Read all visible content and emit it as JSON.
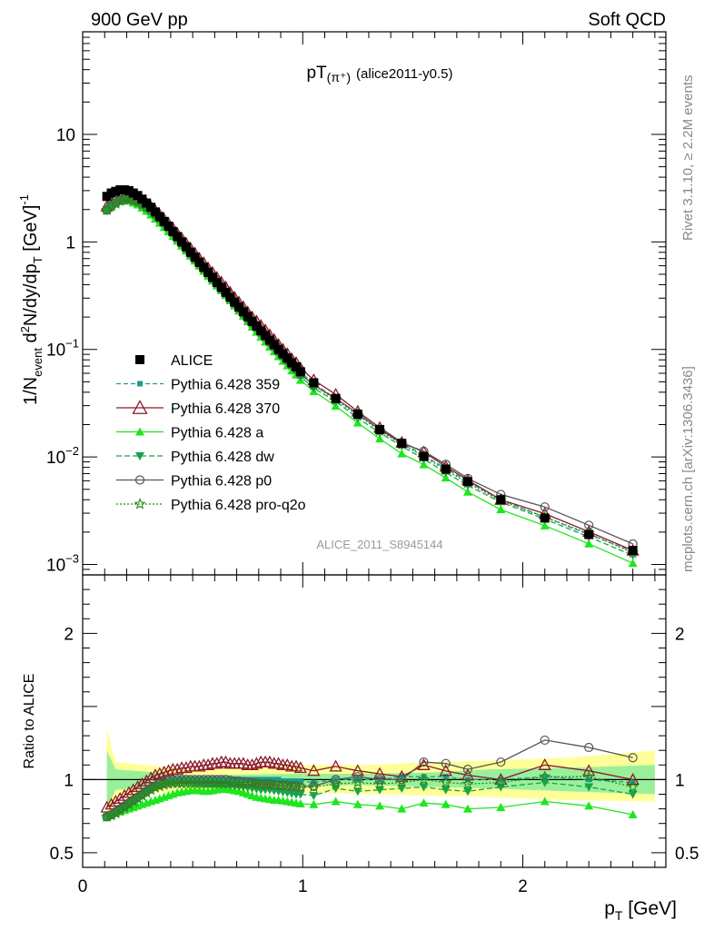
{
  "header": {
    "left": "900 GeV pp",
    "right": "Soft QCD"
  },
  "side_labels": {
    "rivet": "Rivet 3.1.10, ≥ 2.2M events",
    "mcplots": "mcplots.cern.ch [arXiv:1306.3436]"
  },
  "colors": {
    "alice": "#000000",
    "p359": "#1a9e8f",
    "p370": "#8b1a2b",
    "pa": "#1ee61e",
    "pdw": "#17a34a",
    "pp0": "#555555",
    "pq2o": "#2a8a1a",
    "band_inner": "#9af09a",
    "band_outer": "#ffff99"
  },
  "chart_data": [
    {
      "type": "line",
      "panel": "main",
      "title": "pT(π⁺) (alice2011-y0.5)",
      "title_main": "pT",
      "title_sup": "(π⁺)",
      "title_rest": "(alice2011-y0.5)",
      "ylabel": "1/N_event d²N/dy/dp_T [GeV]⁻¹",
      "ylabel_pre": "1/N",
      "ylabel_sub1": "event",
      "ylabel_mid": " d",
      "ylabel_sup1": "2",
      "ylabel_mid2": "N/dy/dp",
      "ylabel_sub2": "T",
      "ylabel_post": " [GeV]",
      "ylabel_sup2": "-1",
      "yscale": "log",
      "ylim": [
        0.0008,
        90
      ],
      "xlim": [
        0,
        2.65
      ],
      "watermark": "ALICE_2011_S8945144",
      "y_ticks": [
        {
          "v": 10,
          "label": "10",
          "exp": ""
        },
        {
          "v": 1,
          "label": "1",
          "exp": ""
        },
        {
          "v": 0.1,
          "label": "10",
          "exp": "−1"
        },
        {
          "v": 0.01,
          "label": "10",
          "exp": "−2"
        },
        {
          "v": 0.001,
          "label": "10",
          "exp": "−3"
        }
      ],
      "x": [
        0.11,
        0.13,
        0.15,
        0.17,
        0.19,
        0.21,
        0.23,
        0.25,
        0.27,
        0.29,
        0.31,
        0.33,
        0.35,
        0.37,
        0.39,
        0.41,
        0.43,
        0.45,
        0.47,
        0.49,
        0.51,
        0.53,
        0.55,
        0.57,
        0.59,
        0.61,
        0.63,
        0.65,
        0.67,
        0.69,
        0.71,
        0.73,
        0.75,
        0.77,
        0.79,
        0.81,
        0.83,
        0.85,
        0.87,
        0.89,
        0.91,
        0.93,
        0.95,
        0.97,
        0.99,
        1.05,
        1.15,
        1.25,
        1.35,
        1.45,
        1.55,
        1.65,
        1.75,
        1.9,
        2.1,
        2.3,
        2.5
      ],
      "legend": [
        {
          "key": "alice",
          "label": "ALICE"
        },
        {
          "key": "p359",
          "label": "Pythia 6.428 359"
        },
        {
          "key": "p370",
          "label": "Pythia 6.428 370"
        },
        {
          "key": "pa",
          "label": "Pythia 6.428 a"
        },
        {
          "key": "pdw",
          "label": "Pythia 6.428 dw"
        },
        {
          "key": "pp0",
          "label": "Pythia 6.428 p0"
        },
        {
          "key": "pq2o",
          "label": "Pythia 6.428 pro-q2o"
        }
      ],
      "series": [
        {
          "key": "alice",
          "name": "ALICE",
          "values": [
            2.65,
            2.85,
            2.95,
            3.05,
            3.05,
            3.0,
            2.85,
            2.7,
            2.5,
            2.3,
            2.1,
            1.9,
            1.72,
            1.55,
            1.4,
            1.25,
            1.12,
            1.0,
            0.9,
            0.8,
            0.72,
            0.645,
            0.58,
            0.52,
            0.468,
            0.42,
            0.378,
            0.34,
            0.306,
            0.275,
            0.248,
            0.224,
            0.202,
            0.182,
            0.165,
            0.149,
            0.135,
            0.122,
            0.111,
            0.1,
            0.091,
            0.083,
            0.075,
            0.069,
            0.062,
            0.049,
            0.035,
            0.025,
            0.018,
            0.0134,
            0.0101,
            0.0077,
            0.0059,
            0.004,
            0.0027,
            0.0019,
            0.00135
          ]
        },
        {
          "key": "p359",
          "name": "Pythia 6.428 359"
        },
        {
          "key": "p370",
          "name": "Pythia 6.428 370"
        },
        {
          "key": "pa",
          "name": "Pythia 6.428 a"
        },
        {
          "key": "pdw",
          "name": "Pythia 6.428 dw"
        },
        {
          "key": "pp0",
          "name": "Pythia 6.428 p0"
        },
        {
          "key": "pq2o",
          "name": "Pythia 6.428 pro-q2o"
        }
      ]
    },
    {
      "type": "line",
      "panel": "ratio",
      "ylabel": "Ratio to ALICE",
      "xlabel": "p_T [GeV]",
      "xlabel_main": "p",
      "xlabel_sub": "T",
      "xlabel_rest": " [GeV]",
      "ylim": [
        0.4,
        2.4
      ],
      "xlim": [
        0,
        2.65
      ],
      "y_ticks": [
        {
          "v": 2,
          "label": "2"
        },
        {
          "v": 1,
          "label": "1"
        },
        {
          "v": 0.5,
          "label": "0.5"
        }
      ],
      "x_ticks": [
        {
          "v": 0,
          "label": "0"
        },
        {
          "v": 1,
          "label": "1"
        },
        {
          "v": 2,
          "label": "2"
        }
      ],
      "band_inner": [
        [
          0.11,
          0.8,
          1.2
        ],
        [
          0.15,
          0.93,
          1.07
        ],
        [
          0.5,
          0.97,
          1.03
        ],
        [
          1.0,
          0.96,
          1.04
        ],
        [
          1.3,
          0.96,
          1.04
        ],
        [
          1.6,
          0.95,
          1.05
        ],
        [
          1.85,
          0.94,
          1.07
        ],
        [
          2.2,
          0.92,
          1.08
        ],
        [
          2.6,
          0.9,
          1.1
        ]
      ],
      "band_outer": [
        [
          0.11,
          0.7,
          1.35
        ],
        [
          0.15,
          0.88,
          1.12
        ],
        [
          0.5,
          0.93,
          1.07
        ],
        [
          1.0,
          0.91,
          1.1
        ],
        [
          1.3,
          0.9,
          1.1
        ],
        [
          1.6,
          0.89,
          1.12
        ],
        [
          1.85,
          0.88,
          1.13
        ],
        [
          2.2,
          0.86,
          1.15
        ],
        [
          2.6,
          0.85,
          1.2
        ]
      ],
      "series": [
        {
          "key": "p359",
          "name": "Pythia 6.428 359",
          "values": [
            0.745,
            0.76,
            0.78,
            0.8,
            0.82,
            0.84,
            0.86,
            0.88,
            0.9,
            0.92,
            0.94,
            0.955,
            0.97,
            0.98,
            0.99,
            0.995,
            1.0,
            1.0,
            1.0,
            1.0,
            1.0,
            1.0,
            1.0,
            1.0,
            1.0,
            1.0,
            1.0,
            1.0,
            1.0,
            1.0,
            1.0,
            1.0,
            1.0,
            1.0,
            1.0,
            1.0,
            1.0,
            1.0,
            1.0,
            1.0,
            0.99,
            0.99,
            0.99,
            0.99,
            0.99,
            0.98,
            1.0,
            1.0,
            1.0,
            1.02,
            1.02,
            1.02,
            1.0,
            1.0,
            1.02,
            1.0,
            0.98
          ]
        },
        {
          "key": "p370",
          "name": "Pythia 6.428 370",
          "values": [
            0.81,
            0.83,
            0.85,
            0.87,
            0.89,
            0.91,
            0.93,
            0.95,
            0.97,
            0.99,
            1.01,
            1.03,
            1.04,
            1.05,
            1.06,
            1.07,
            1.07,
            1.08,
            1.08,
            1.09,
            1.09,
            1.09,
            1.1,
            1.1,
            1.11,
            1.11,
            1.12,
            1.12,
            1.11,
            1.11,
            1.11,
            1.11,
            1.1,
            1.1,
            1.11,
            1.12,
            1.12,
            1.12,
            1.11,
            1.11,
            1.1,
            1.1,
            1.09,
            1.09,
            1.08,
            1.06,
            1.09,
            1.06,
            1.04,
            1.02,
            1.1,
            1.06,
            1.03,
            1.0,
            1.1,
            1.06,
            1.0
          ]
        },
        {
          "key": "pa",
          "name": "Pythia 6.428 a",
          "values": [
            0.745,
            0.755,
            0.77,
            0.78,
            0.79,
            0.8,
            0.81,
            0.82,
            0.83,
            0.84,
            0.85,
            0.86,
            0.87,
            0.88,
            0.89,
            0.9,
            0.91,
            0.915,
            0.92,
            0.925,
            0.925,
            0.925,
            0.92,
            0.92,
            0.925,
            0.93,
            0.935,
            0.935,
            0.93,
            0.925,
            0.92,
            0.91,
            0.9,
            0.89,
            0.88,
            0.875,
            0.87,
            0.865,
            0.86,
            0.86,
            0.855,
            0.85,
            0.845,
            0.84,
            0.835,
            0.83,
            0.85,
            0.83,
            0.82,
            0.8,
            0.84,
            0.83,
            0.8,
            0.81,
            0.85,
            0.82,
            0.76
          ]
        },
        {
          "key": "pdw",
          "name": "Pythia 6.428 dw",
          "values": [
            0.745,
            0.755,
            0.77,
            0.79,
            0.81,
            0.83,
            0.85,
            0.87,
            0.89,
            0.91,
            0.93,
            0.95,
            0.96,
            0.97,
            0.975,
            0.98,
            0.98,
            0.98,
            0.98,
            0.98,
            0.975,
            0.975,
            0.97,
            0.97,
            0.97,
            0.97,
            0.965,
            0.965,
            0.96,
            0.96,
            0.955,
            0.95,
            0.945,
            0.94,
            0.935,
            0.93,
            0.93,
            0.93,
            0.925,
            0.92,
            0.915,
            0.91,
            0.905,
            0.9,
            0.9,
            0.89,
            0.94,
            0.92,
            0.93,
            0.94,
            0.95,
            0.93,
            0.92,
            0.95,
            0.98,
            0.95,
            0.9
          ]
        },
        {
          "key": "pp0",
          "name": "Pythia 6.428 p0",
          "values": [
            0.745,
            0.76,
            0.78,
            0.8,
            0.82,
            0.84,
            0.86,
            0.88,
            0.9,
            0.92,
            0.94,
            0.955,
            0.97,
            0.98,
            0.99,
            0.995,
            1.0,
            1.0,
            1.0,
            1.0,
            1.0,
            1.0,
            1.0,
            1.0,
            1.0,
            1.0,
            1.0,
            1.0,
            0.995,
            0.99,
            0.99,
            0.985,
            0.98,
            0.98,
            0.975,
            0.97,
            0.97,
            0.97,
            0.965,
            0.96,
            0.96,
            0.96,
            0.955,
            0.955,
            0.95,
            0.955,
            1.0,
            1.02,
            1.0,
            1.0,
            1.12,
            1.11,
            1.07,
            1.12,
            1.27,
            1.22,
            1.15
          ]
        },
        {
          "key": "pq2o",
          "name": "Pythia 6.428 pro-q2o",
          "values": [
            0.745,
            0.755,
            0.77,
            0.79,
            0.81,
            0.83,
            0.85,
            0.87,
            0.89,
            0.91,
            0.93,
            0.945,
            0.955,
            0.965,
            0.97,
            0.975,
            0.975,
            0.975,
            0.975,
            0.975,
            0.975,
            0.975,
            0.975,
            0.975,
            0.975,
            0.975,
            0.975,
            0.975,
            0.975,
            0.975,
            0.97,
            0.97,
            0.97,
            0.97,
            0.97,
            0.965,
            0.965,
            0.965,
            0.96,
            0.96,
            0.96,
            0.96,
            0.955,
            0.955,
            0.95,
            0.95,
            0.97,
            0.98,
            0.97,
            0.98,
            1.0,
            0.98,
            0.97,
            0.98,
            1.02,
            1.02,
            0.95
          ]
        }
      ]
    }
  ]
}
